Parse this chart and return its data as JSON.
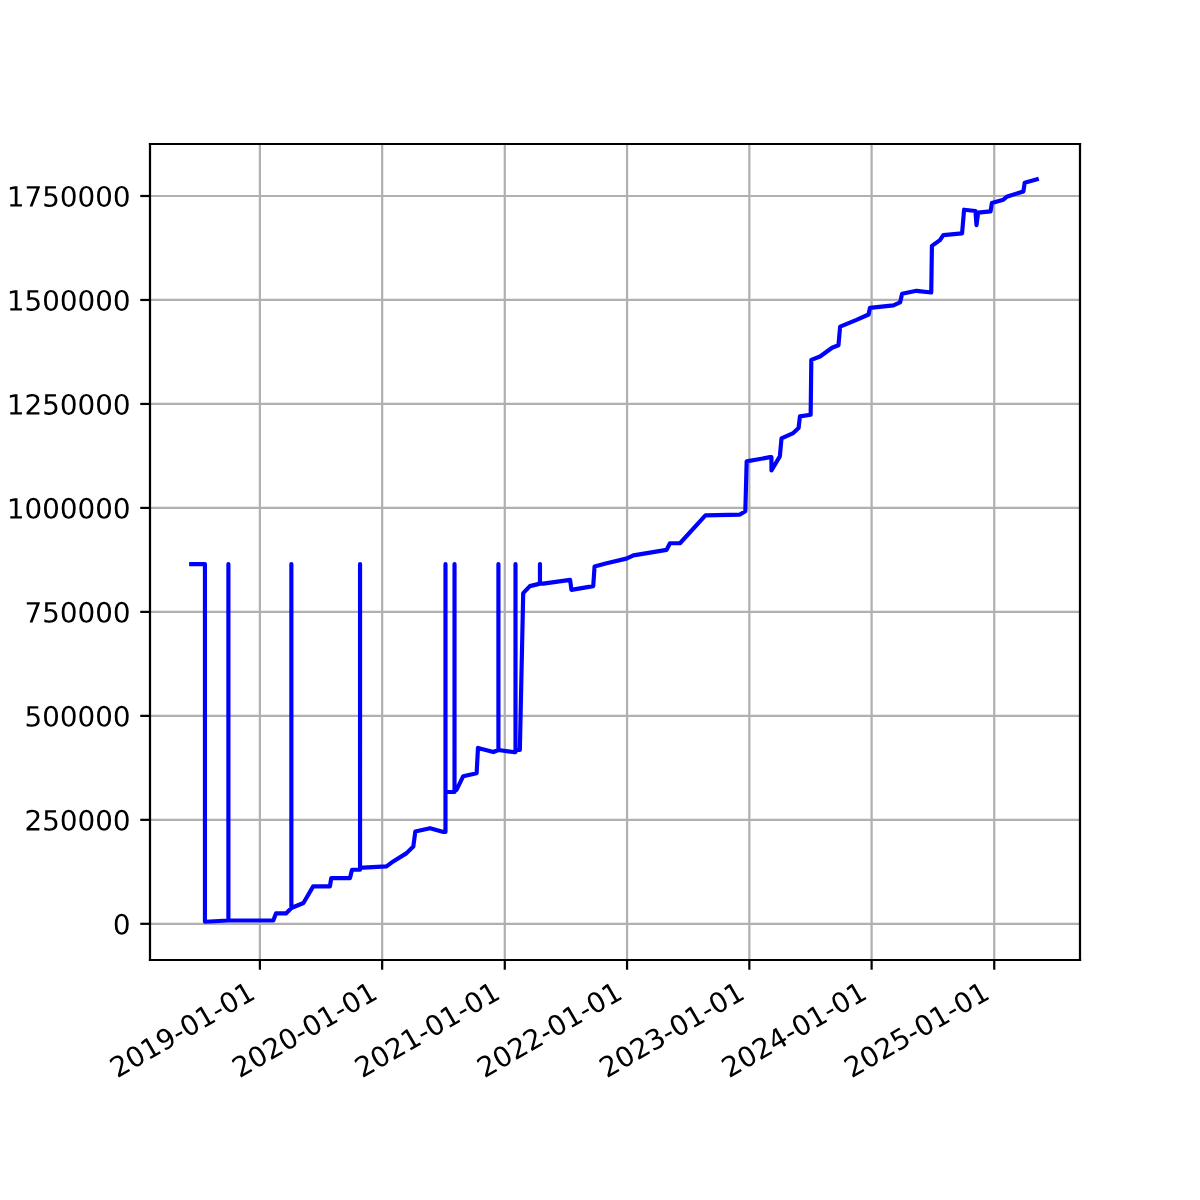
{
  "chart_data": {
    "type": "line",
    "series": [
      {
        "color": "#0000ff",
        "x": [
          "2018-06-10",
          "2018-07-21",
          "2018-07-21",
          "2018-09-29",
          "2018-09-29",
          "2018-09-29",
          "2019-02-10",
          "2019-02-18",
          "2019-03-20",
          "2019-04-05",
          "2019-04-05",
          "2019-04-05",
          "2019-05-11",
          "2019-06-09",
          "2019-07-29",
          "2019-08-02",
          "2019-09-27",
          "2019-10-03",
          "2019-10-27",
          "2019-10-27",
          "2019-10-27",
          "2019-11-06",
          "2020-01-14",
          "2020-02-03",
          "2020-03-14",
          "2020-04-03",
          "2020-04-09",
          "2020-05-23",
          "2020-07-02",
          "2020-07-08",
          "2020-07-08",
          "2020-07-08",
          "2020-08-04",
          "2020-08-04",
          "2020-08-04",
          "2020-08-10",
          "2020-08-30",
          "2020-10-09",
          "2020-10-13",
          "2020-11-28",
          "2020-12-13",
          "2020-12-13",
          "2020-12-13",
          "2021-01-27",
          "2021-02-02",
          "2021-02-02",
          "2021-02-02",
          "2021-02-15",
          "2021-02-25",
          "2021-03-17",
          "2021-04-16",
          "2021-04-16",
          "2021-04-16",
          "2021-04-26",
          "2021-07-15",
          "2021-07-19",
          "2021-09-22",
          "2021-09-26",
          "2021-11-01",
          "2021-12-30",
          "2022-01-20",
          "2022-04-29",
          "2022-05-09",
          "2022-06-08",
          "2022-08-23",
          "2022-12-04",
          "2022-12-20",
          "2022-12-24",
          "2023-03-04",
          "2023-03-08",
          "2023-03-08",
          "2023-04-02",
          "2023-04-07",
          "2023-05-12",
          "2023-05-28",
          "2023-06-01",
          "2023-07-03",
          "2023-07-05",
          "2023-07-31",
          "2023-09-05",
          "2023-09-24",
          "2023-09-29",
          "2023-11-17",
          "2023-12-23",
          "2023-12-27",
          "2024-03-06",
          "2024-03-26",
          "2024-04-01",
          "2024-05-14",
          "2024-06-27",
          "2024-06-29",
          "2024-07-23",
          "2024-08-02",
          "2024-09-27",
          "2024-10-03",
          "2024-11-06",
          "2024-11-09",
          "2024-11-14",
          "2024-12-21",
          "2024-12-25",
          "2025-01-28",
          "2025-02-07",
          "2025-03-29",
          "2025-04-02",
          "2025-05-08"
        ],
        "values": [
          865000,
          865000,
          5000,
          8000,
          865000,
          8000,
          8000,
          25000,
          25000,
          38000,
          865000,
          38000,
          50000,
          90000,
          90000,
          110000,
          110000,
          130000,
          130000,
          865000,
          135000,
          135000,
          138000,
          150000,
          170000,
          186000,
          222000,
          230000,
          221000,
          221000,
          865000,
          317000,
          317000,
          865000,
          322000,
          322000,
          355000,
          362000,
          423000,
          413000,
          418000,
          865000,
          418000,
          413000,
          413000,
          865000,
          418000,
          418000,
          795000,
          812000,
          818000,
          865000,
          818000,
          818000,
          827000,
          803000,
          812000,
          859000,
          867000,
          878000,
          886000,
          899000,
          915000,
          915000,
          982000,
          984000,
          992000,
          1112000,
          1122000,
          1122000,
          1090000,
          1124000,
          1167000,
          1180000,
          1192000,
          1220000,
          1224000,
          1356000,
          1364000,
          1385000,
          1391000,
          1436000,
          1452000,
          1465000,
          1481000,
          1487000,
          1494000,
          1515000,
          1522000,
          1518000,
          1630000,
          1644000,
          1656000,
          1660000,
          1717000,
          1714000,
          1680000,
          1710000,
          1713000,
          1733000,
          1741000,
          1748000,
          1761000,
          1782000,
          1790000
        ]
      }
    ],
    "xlim": [
      "2018-02-07",
      "2025-09-14"
    ],
    "xticks": [
      {
        "value": "2019-01-01",
        "label": "2019-01-01"
      },
      {
        "value": "2020-01-01",
        "label": "2020-01-01"
      },
      {
        "value": "2021-01-01",
        "label": "2021-01-01"
      },
      {
        "value": "2022-01-01",
        "label": "2022-01-01"
      },
      {
        "value": "2023-01-01",
        "label": "2023-01-01"
      },
      {
        "value": "2024-01-01",
        "label": "2024-01-01"
      },
      {
        "value": "2025-01-01",
        "label": "2025-01-01"
      }
    ],
    "ylim": [
      -87000,
      1875000
    ],
    "yticks": [
      0,
      250000,
      500000,
      750000,
      1000000,
      1250000,
      1500000,
      1750000
    ],
    "grid": true
  }
}
